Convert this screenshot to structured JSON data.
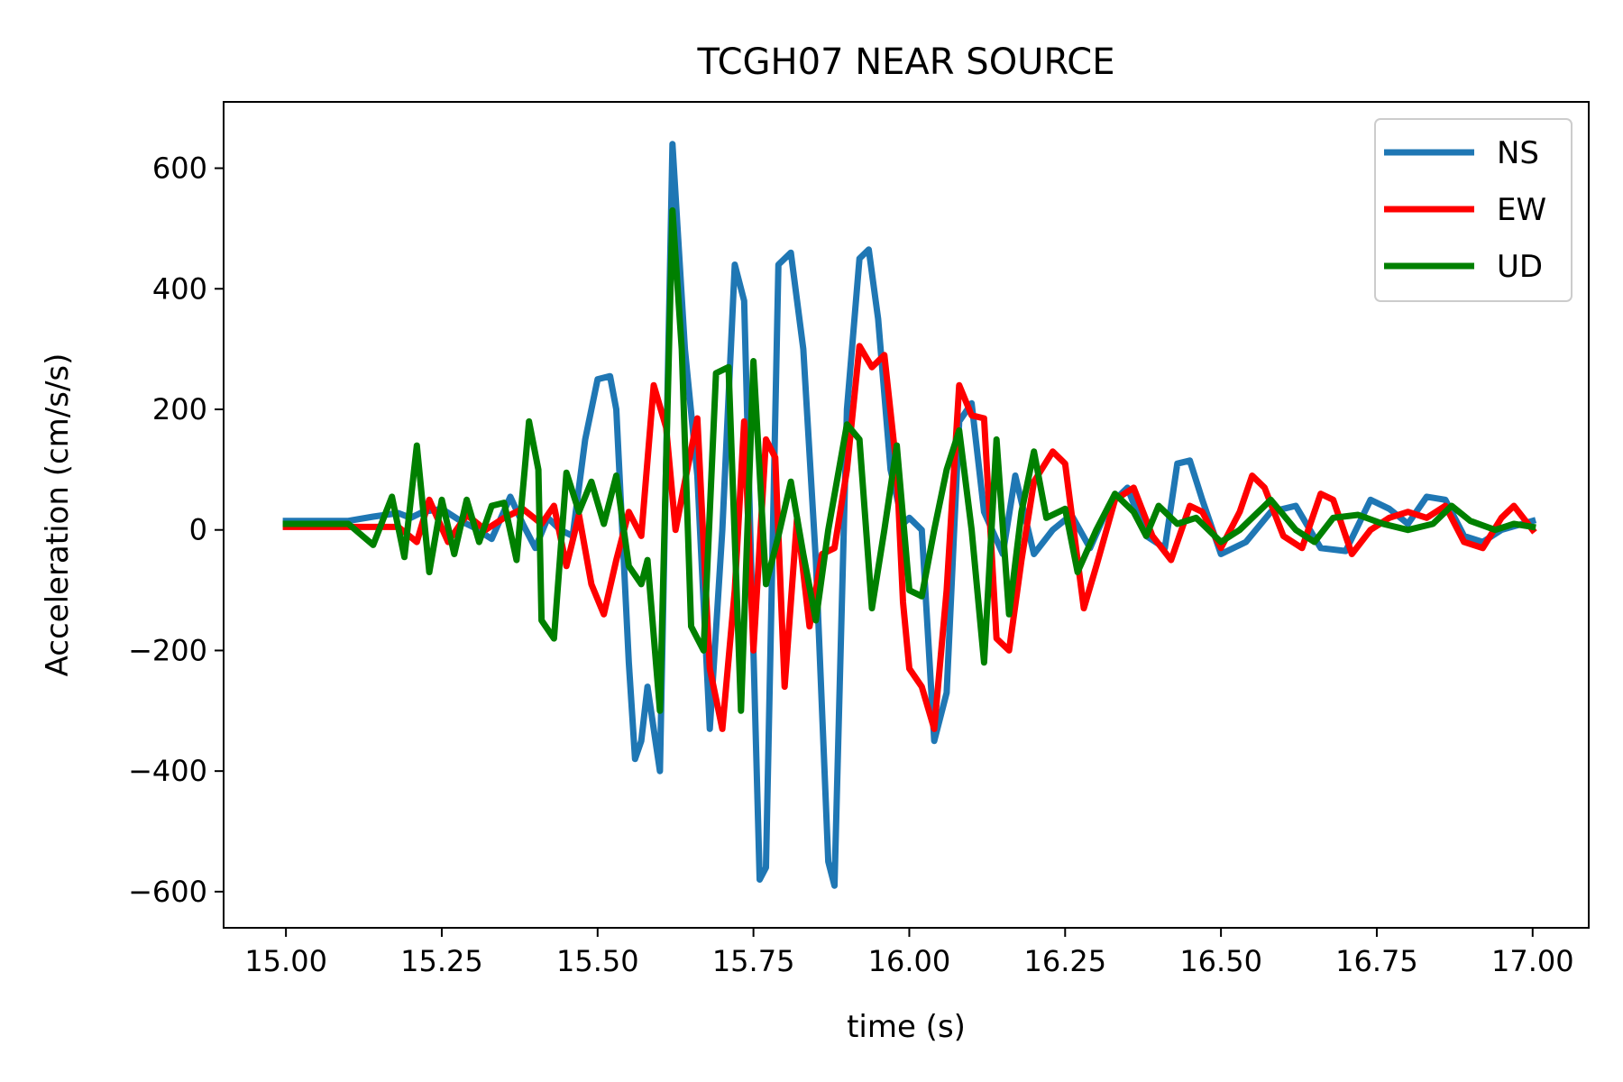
{
  "chart_data": {
    "type": "line",
    "title": "TCGH07 NEAR SOURCE",
    "xlabel": "time (s)",
    "ylabel": "Acceleration (cm/s/s)",
    "xlim": [
      14.9,
      17.09
    ],
    "ylim": [
      -660,
      710
    ],
    "xticks": [
      15.0,
      15.25,
      15.5,
      15.75,
      16.0,
      16.25,
      16.5,
      16.75,
      17.0
    ],
    "xtick_labels": [
      "15.00",
      "15.25",
      "15.50",
      "15.75",
      "16.00",
      "16.25",
      "16.50",
      "16.75",
      "17.00"
    ],
    "yticks": [
      -600,
      -400,
      -200,
      0,
      200,
      400,
      600
    ],
    "ytick_labels": [
      "−600",
      "−400",
      "−200",
      "0",
      "200",
      "400",
      "600"
    ],
    "grid": false,
    "legend_position": "top-right",
    "series": [
      {
        "name": "NS",
        "color": "#1f77b4",
        "points": [
          [
            15.0,
            15
          ],
          [
            15.05,
            15
          ],
          [
            15.1,
            15
          ],
          [
            15.14,
            22
          ],
          [
            15.18,
            28
          ],
          [
            15.2,
            20
          ],
          [
            15.22,
            30
          ],
          [
            15.25,
            35
          ],
          [
            15.28,
            15
          ],
          [
            15.3,
            5
          ],
          [
            15.33,
            -15
          ],
          [
            15.36,
            55
          ],
          [
            15.38,
            10
          ],
          [
            15.4,
            -30
          ],
          [
            15.42,
            20
          ],
          [
            15.44,
            0
          ],
          [
            15.46,
            -10
          ],
          [
            15.48,
            150
          ],
          [
            15.5,
            250
          ],
          [
            15.52,
            255
          ],
          [
            15.53,
            200
          ],
          [
            15.55,
            -220
          ],
          [
            15.56,
            -380
          ],
          [
            15.57,
            -350
          ],
          [
            15.58,
            -260
          ],
          [
            15.6,
            -400
          ],
          [
            15.62,
            640
          ],
          [
            15.64,
            300
          ],
          [
            15.66,
            90
          ],
          [
            15.68,
            -330
          ],
          [
            15.7,
            0
          ],
          [
            15.72,
            440
          ],
          [
            15.735,
            380
          ],
          [
            15.75,
            -200
          ],
          [
            15.76,
            -580
          ],
          [
            15.77,
            -560
          ],
          [
            15.79,
            440
          ],
          [
            15.81,
            460
          ],
          [
            15.83,
            300
          ],
          [
            15.85,
            -50
          ],
          [
            15.87,
            -550
          ],
          [
            15.88,
            -590
          ],
          [
            15.9,
            200
          ],
          [
            15.92,
            450
          ],
          [
            15.935,
            465
          ],
          [
            15.95,
            350
          ],
          [
            15.97,
            100
          ],
          [
            15.99,
            10
          ],
          [
            16.0,
            20
          ],
          [
            16.02,
            0
          ],
          [
            16.04,
            -350
          ],
          [
            16.06,
            -270
          ],
          [
            16.08,
            180
          ],
          [
            16.1,
            210
          ],
          [
            16.12,
            30
          ],
          [
            16.15,
            -40
          ],
          [
            16.17,
            90
          ],
          [
            16.2,
            -40
          ],
          [
            16.23,
            0
          ],
          [
            16.26,
            25
          ],
          [
            16.29,
            -30
          ],
          [
            16.32,
            40
          ],
          [
            16.35,
            70
          ],
          [
            16.38,
            -10
          ],
          [
            16.41,
            -30
          ],
          [
            16.43,
            110
          ],
          [
            16.45,
            115
          ],
          [
            16.47,
            50
          ],
          [
            16.5,
            -40
          ],
          [
            16.54,
            -20
          ],
          [
            16.58,
            30
          ],
          [
            16.62,
            40
          ],
          [
            16.66,
            -30
          ],
          [
            16.7,
            -35
          ],
          [
            16.74,
            50
          ],
          [
            16.77,
            35
          ],
          [
            16.8,
            10
          ],
          [
            16.83,
            55
          ],
          [
            16.86,
            50
          ],
          [
            16.89,
            -10
          ],
          [
            16.92,
            -20
          ],
          [
            16.95,
            0
          ],
          [
            17.0,
            15
          ]
        ]
      },
      {
        "name": "EW",
        "color": "#ff0000",
        "points": [
          [
            15.0,
            5
          ],
          [
            15.1,
            5
          ],
          [
            15.18,
            5
          ],
          [
            15.21,
            -20
          ],
          [
            15.23,
            50
          ],
          [
            15.26,
            -20
          ],
          [
            15.29,
            25
          ],
          [
            15.32,
            0
          ],
          [
            15.35,
            20
          ],
          [
            15.38,
            35
          ],
          [
            15.41,
            10
          ],
          [
            15.43,
            40
          ],
          [
            15.45,
            -60
          ],
          [
            15.47,
            25
          ],
          [
            15.49,
            -90
          ],
          [
            15.51,
            -140
          ],
          [
            15.53,
            -50
          ],
          [
            15.55,
            30
          ],
          [
            15.57,
            -10
          ],
          [
            15.59,
            240
          ],
          [
            15.61,
            170
          ],
          [
            15.625,
            0
          ],
          [
            15.64,
            80
          ],
          [
            15.66,
            185
          ],
          [
            15.68,
            -230
          ],
          [
            15.7,
            -330
          ],
          [
            15.72,
            -100
          ],
          [
            15.735,
            180
          ],
          [
            15.75,
            -200
          ],
          [
            15.77,
            150
          ],
          [
            15.785,
            120
          ],
          [
            15.8,
            -260
          ],
          [
            15.82,
            20
          ],
          [
            15.84,
            -160
          ],
          [
            15.86,
            -40
          ],
          [
            15.88,
            -30
          ],
          [
            15.9,
            100
          ],
          [
            15.92,
            305
          ],
          [
            15.94,
            270
          ],
          [
            15.96,
            290
          ],
          [
            15.98,
            100
          ],
          [
            15.99,
            -120
          ],
          [
            16.0,
            -230
          ],
          [
            16.02,
            -260
          ],
          [
            16.04,
            -330
          ],
          [
            16.06,
            -100
          ],
          [
            16.08,
            240
          ],
          [
            16.1,
            190
          ],
          [
            16.12,
            185
          ],
          [
            16.14,
            -180
          ],
          [
            16.16,
            -200
          ],
          [
            16.18,
            -50
          ],
          [
            16.2,
            80
          ],
          [
            16.23,
            130
          ],
          [
            16.25,
            110
          ],
          [
            16.28,
            -130
          ],
          [
            16.3,
            -60
          ],
          [
            16.33,
            50
          ],
          [
            16.36,
            70
          ],
          [
            16.39,
            -10
          ],
          [
            16.42,
            -50
          ],
          [
            16.45,
            40
          ],
          [
            16.47,
            30
          ],
          [
            16.5,
            -30
          ],
          [
            16.53,
            30
          ],
          [
            16.55,
            90
          ],
          [
            16.57,
            70
          ],
          [
            16.6,
            -10
          ],
          [
            16.63,
            -30
          ],
          [
            16.66,
            60
          ],
          [
            16.68,
            50
          ],
          [
            16.71,
            -40
          ],
          [
            16.74,
            0
          ],
          [
            16.77,
            20
          ],
          [
            16.8,
            30
          ],
          [
            16.83,
            20
          ],
          [
            16.86,
            40
          ],
          [
            16.89,
            -20
          ],
          [
            16.92,
            -30
          ],
          [
            16.95,
            20
          ],
          [
            16.97,
            40
          ],
          [
            17.0,
            0
          ]
        ]
      },
      {
        "name": "UD",
        "color": "#008000",
        "points": [
          [
            15.0,
            10
          ],
          [
            15.05,
            10
          ],
          [
            15.1,
            10
          ],
          [
            15.14,
            -25
          ],
          [
            15.17,
            55
          ],
          [
            15.19,
            -45
          ],
          [
            15.21,
            140
          ],
          [
            15.23,
            -70
          ],
          [
            15.25,
            50
          ],
          [
            15.27,
            -40
          ],
          [
            15.29,
            50
          ],
          [
            15.31,
            -20
          ],
          [
            15.33,
            40
          ],
          [
            15.35,
            45
          ],
          [
            15.37,
            -50
          ],
          [
            15.39,
            180
          ],
          [
            15.405,
            100
          ],
          [
            15.41,
            -150
          ],
          [
            15.43,
            -180
          ],
          [
            15.45,
            95
          ],
          [
            15.47,
            30
          ],
          [
            15.49,
            80
          ],
          [
            15.51,
            10
          ],
          [
            15.53,
            90
          ],
          [
            15.55,
            -60
          ],
          [
            15.57,
            -90
          ],
          [
            15.58,
            -50
          ],
          [
            15.6,
            -300
          ],
          [
            15.62,
            530
          ],
          [
            15.635,
            300
          ],
          [
            15.65,
            -160
          ],
          [
            15.67,
            -200
          ],
          [
            15.69,
            260
          ],
          [
            15.71,
            270
          ],
          [
            15.73,
            -300
          ],
          [
            15.75,
            280
          ],
          [
            15.77,
            -90
          ],
          [
            15.79,
            -10
          ],
          [
            15.81,
            80
          ],
          [
            15.83,
            -40
          ],
          [
            15.85,
            -150
          ],
          [
            15.87,
            0
          ],
          [
            15.9,
            175
          ],
          [
            15.92,
            150
          ],
          [
            15.94,
            -130
          ],
          [
            15.96,
            0
          ],
          [
            15.98,
            140
          ],
          [
            16.0,
            -100
          ],
          [
            16.02,
            -110
          ],
          [
            16.04,
            0
          ],
          [
            16.06,
            100
          ],
          [
            16.08,
            165
          ],
          [
            16.1,
            0
          ],
          [
            16.12,
            -220
          ],
          [
            16.14,
            150
          ],
          [
            16.16,
            -140
          ],
          [
            16.18,
            30
          ],
          [
            16.2,
            130
          ],
          [
            16.22,
            20
          ],
          [
            16.25,
            35
          ],
          [
            16.27,
            -70
          ],
          [
            16.3,
            0
          ],
          [
            16.33,
            60
          ],
          [
            16.36,
            30
          ],
          [
            16.38,
            -10
          ],
          [
            16.4,
            40
          ],
          [
            16.43,
            10
          ],
          [
            16.46,
            20
          ],
          [
            16.5,
            -20
          ],
          [
            16.53,
            0
          ],
          [
            16.56,
            30
          ],
          [
            16.58,
            50
          ],
          [
            16.62,
            0
          ],
          [
            16.65,
            -20
          ],
          [
            16.68,
            20
          ],
          [
            16.72,
            25
          ],
          [
            16.76,
            10
          ],
          [
            16.8,
            0
          ],
          [
            16.84,
            10
          ],
          [
            16.87,
            40
          ],
          [
            16.9,
            15
          ],
          [
            16.94,
            0
          ],
          [
            16.97,
            10
          ],
          [
            17.0,
            5
          ]
        ]
      }
    ]
  }
}
